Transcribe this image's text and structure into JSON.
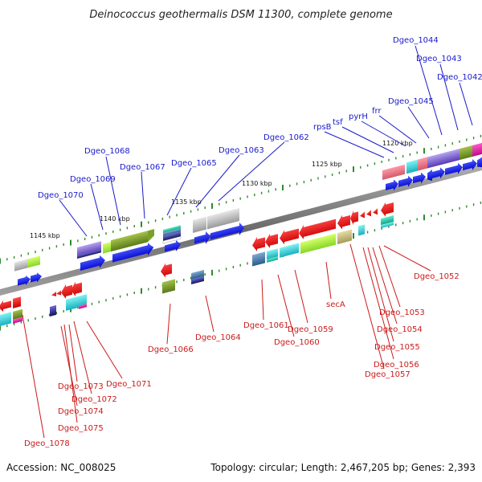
{
  "title": "Deinococcus geothermalis DSM 11300, complete genome",
  "footer": {
    "accession": "Accession: NC_008025",
    "topology": "Topology: circular; Length: 2,467,205 bp; Genes: 2,393"
  },
  "scale_labels": [
    "1145 kbp",
    "1140 kbp",
    "1135 kbp",
    "1130 kbp",
    "1125 kbp",
    "1120 kbp"
  ],
  "forward_genes": [
    "Dgeo_1070",
    "Dgeo_1069",
    "Dgeo_1068",
    "Dgeo_1067",
    "Dgeo_1065",
    "Dgeo_1063",
    "Dgeo_1062",
    "rpsB",
    "tsf",
    "pyrH",
    "frr",
    "Dgeo_1045",
    "Dgeo_1044",
    "Dgeo_1043",
    "Dgeo_1042"
  ],
  "reverse_genes": [
    "Dgeo_1078",
    "Dgeo_1075",
    "Dgeo_1074",
    "Dgeo_1073",
    "Dgeo_1072",
    "Dgeo_1071",
    "Dgeo_1066",
    "Dgeo_1064",
    "Dgeo_1061",
    "Dgeo_1059",
    "Dgeo_1060",
    "secA",
    "Dgeo_1052",
    "Dgeo_1053",
    "Dgeo_1054",
    "Dgeo_1055",
    "Dgeo_1056",
    "Dgeo_1057"
  ],
  "colors": {
    "forward_label": "#1a1acc",
    "reverse_label": "#cc1a1a",
    "forward_arrow": "#0a14e6",
    "reverse_arrow": "#e60a0a",
    "backbone": "#808080",
    "tick": "#2e8b2e"
  }
}
